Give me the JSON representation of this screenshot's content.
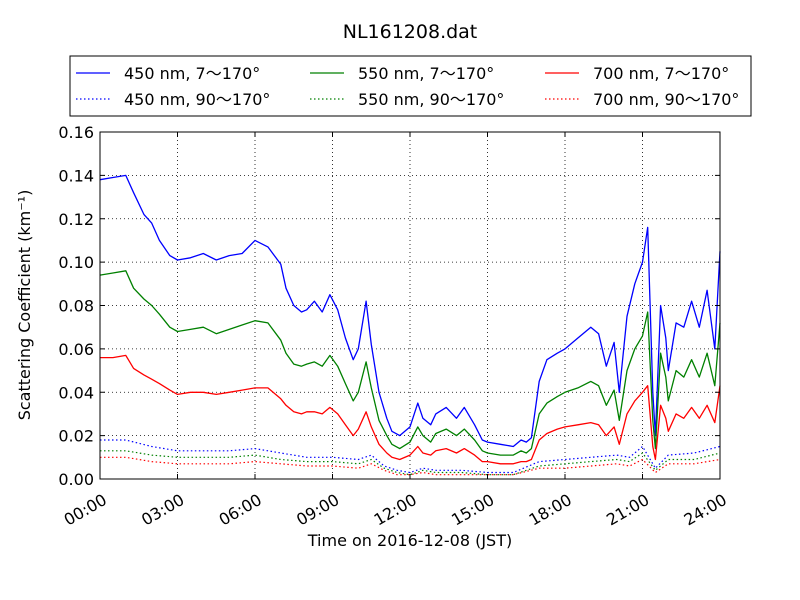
{
  "chart_data": {
    "type": "line",
    "title": "NL161208.dat",
    "xlabel": "Time on 2016-12-08 (JST)",
    "ylabel": "Scattering Coefficient (km⁻¹)",
    "xlim": [
      0,
      24
    ],
    "ylim": [
      0,
      0.16
    ],
    "x_ticks": [
      "00:00",
      "03:00",
      "06:00",
      "09:00",
      "12:00",
      "15:00",
      "18:00",
      "21:00",
      "24:00"
    ],
    "y_ticks": [
      "0.00",
      "0.02",
      "0.04",
      "0.06",
      "0.08",
      "0.10",
      "0.12",
      "0.14",
      "0.16"
    ],
    "grid": true,
    "legend_position": "top",
    "x_unit": "hours (JST)",
    "series": [
      {
        "name": "450 nm, 7～170°",
        "color": "#0000ff",
        "style": "solid",
        "x": [
          0,
          0.5,
          1,
          1.3,
          1.7,
          2,
          2.3,
          2.7,
          3,
          3.5,
          4,
          4.5,
          5,
          5.5,
          6,
          6.5,
          7,
          7.2,
          7.5,
          7.8,
          8,
          8.3,
          8.6,
          8.9,
          9.2,
          9.5,
          9.8,
          10,
          10.3,
          10.5,
          10.8,
          11.1,
          11.3,
          11.6,
          12,
          12.3,
          12.5,
          12.8,
          13,
          13.4,
          13.8,
          14.1,
          14.5,
          14.8,
          15,
          15.5,
          16,
          16.3,
          16.5,
          16.7,
          17,
          17.3,
          17.7,
          18,
          18.5,
          19,
          19.3,
          19.6,
          19.9,
          20.1,
          20.4,
          20.7,
          21,
          21.2,
          21.4,
          21.5,
          21.7,
          21.9,
          22,
          22.3,
          22.6,
          22.9,
          23.2,
          23.5,
          23.8,
          24
        ],
        "values": [
          0.138,
          0.139,
          0.14,
          0.132,
          0.122,
          0.118,
          0.11,
          0.103,
          0.101,
          0.102,
          0.104,
          0.101,
          0.103,
          0.104,
          0.11,
          0.107,
          0.099,
          0.088,
          0.08,
          0.077,
          0.078,
          0.082,
          0.077,
          0.085,
          0.078,
          0.065,
          0.055,
          0.06,
          0.082,
          0.062,
          0.04,
          0.028,
          0.022,
          0.02,
          0.024,
          0.035,
          0.028,
          0.025,
          0.03,
          0.033,
          0.028,
          0.033,
          0.025,
          0.018,
          0.017,
          0.016,
          0.015,
          0.018,
          0.017,
          0.019,
          0.045,
          0.055,
          0.058,
          0.06,
          0.065,
          0.07,
          0.067,
          0.052,
          0.063,
          0.04,
          0.075,
          0.09,
          0.1,
          0.116,
          0.04,
          0.02,
          0.08,
          0.065,
          0.05,
          0.072,
          0.07,
          0.082,
          0.07,
          0.087,
          0.06,
          0.105
        ]
      },
      {
        "name": "450 nm, 90～170°",
        "color": "#0000ff",
        "style": "dotted",
        "x": [
          0,
          1,
          2,
          3,
          4,
          5,
          6,
          7,
          8,
          9,
          10,
          10.5,
          11,
          11.5,
          12,
          12.5,
          13,
          14,
          15,
          16,
          17,
          18,
          19,
          20,
          20.5,
          21,
          21.5,
          22,
          23,
          24
        ],
        "values": [
          0.018,
          0.018,
          0.015,
          0.013,
          0.013,
          0.013,
          0.014,
          0.012,
          0.01,
          0.01,
          0.009,
          0.011,
          0.006,
          0.004,
          0.003,
          0.005,
          0.004,
          0.004,
          0.003,
          0.003,
          0.008,
          0.009,
          0.01,
          0.011,
          0.01,
          0.015,
          0.005,
          0.011,
          0.012,
          0.015
        ]
      },
      {
        "name": "550 nm, 7～170°",
        "color": "#008000",
        "style": "solid",
        "x": [
          0,
          0.5,
          1,
          1.3,
          1.7,
          2,
          2.3,
          2.7,
          3,
          3.5,
          4,
          4.5,
          5,
          5.5,
          6,
          6.5,
          7,
          7.2,
          7.5,
          7.8,
          8,
          8.3,
          8.6,
          8.9,
          9.2,
          9.5,
          9.8,
          10,
          10.3,
          10.5,
          10.8,
          11.1,
          11.3,
          11.6,
          12,
          12.3,
          12.5,
          12.8,
          13,
          13.4,
          13.8,
          14.1,
          14.5,
          14.8,
          15,
          15.5,
          16,
          16.3,
          16.5,
          16.7,
          17,
          17.3,
          17.7,
          18,
          18.5,
          19,
          19.3,
          19.6,
          19.9,
          20.1,
          20.4,
          20.7,
          21,
          21.2,
          21.4,
          21.5,
          21.7,
          21.9,
          22,
          22.3,
          22.6,
          22.9,
          23.2,
          23.5,
          23.8,
          24
        ],
        "values": [
          0.094,
          0.095,
          0.096,
          0.088,
          0.083,
          0.08,
          0.076,
          0.07,
          0.068,
          0.069,
          0.07,
          0.067,
          0.069,
          0.071,
          0.073,
          0.072,
          0.064,
          0.058,
          0.053,
          0.052,
          0.053,
          0.054,
          0.052,
          0.057,
          0.052,
          0.044,
          0.036,
          0.04,
          0.054,
          0.042,
          0.027,
          0.02,
          0.016,
          0.014,
          0.017,
          0.024,
          0.02,
          0.017,
          0.021,
          0.023,
          0.02,
          0.023,
          0.018,
          0.013,
          0.012,
          0.011,
          0.011,
          0.013,
          0.012,
          0.014,
          0.03,
          0.035,
          0.038,
          0.04,
          0.042,
          0.045,
          0.043,
          0.034,
          0.041,
          0.027,
          0.05,
          0.06,
          0.066,
          0.077,
          0.027,
          0.014,
          0.058,
          0.047,
          0.036,
          0.05,
          0.047,
          0.055,
          0.047,
          0.058,
          0.043,
          0.072
        ]
      },
      {
        "name": "550 nm, 90～170°",
        "color": "#008000",
        "style": "dotted",
        "x": [
          0,
          1,
          2,
          3,
          4,
          5,
          6,
          7,
          8,
          9,
          10,
          10.5,
          11,
          11.5,
          12,
          12.5,
          13,
          14,
          15,
          16,
          17,
          18,
          19,
          20,
          20.5,
          21,
          21.5,
          22,
          23,
          24
        ],
        "values": [
          0.013,
          0.013,
          0.011,
          0.01,
          0.01,
          0.01,
          0.011,
          0.009,
          0.008,
          0.008,
          0.007,
          0.009,
          0.005,
          0.003,
          0.002,
          0.004,
          0.003,
          0.003,
          0.002,
          0.002,
          0.006,
          0.007,
          0.008,
          0.009,
          0.008,
          0.012,
          0.004,
          0.009,
          0.009,
          0.012
        ]
      },
      {
        "name": "700 nm, 7～170°",
        "color": "#ff0000",
        "style": "solid",
        "x": [
          0,
          0.5,
          1,
          1.3,
          1.7,
          2,
          2.3,
          2.7,
          3,
          3.5,
          4,
          4.5,
          5,
          5.5,
          6,
          6.5,
          7,
          7.2,
          7.5,
          7.8,
          8,
          8.3,
          8.6,
          8.9,
          9.2,
          9.5,
          9.8,
          10,
          10.3,
          10.5,
          10.8,
          11.1,
          11.3,
          11.6,
          12,
          12.3,
          12.5,
          12.8,
          13,
          13.4,
          13.8,
          14.1,
          14.5,
          14.8,
          15,
          15.5,
          16,
          16.3,
          16.5,
          16.7,
          17,
          17.3,
          17.7,
          18,
          18.5,
          19,
          19.3,
          19.6,
          19.9,
          20.1,
          20.4,
          20.7,
          21,
          21.2,
          21.4,
          21.5,
          21.7,
          21.9,
          22,
          22.3,
          22.6,
          22.9,
          23.2,
          23.5,
          23.8,
          24
        ],
        "values": [
          0.056,
          0.056,
          0.057,
          0.051,
          0.048,
          0.046,
          0.044,
          0.041,
          0.039,
          0.04,
          0.04,
          0.039,
          0.04,
          0.041,
          0.042,
          0.042,
          0.037,
          0.034,
          0.031,
          0.03,
          0.031,
          0.031,
          0.03,
          0.033,
          0.03,
          0.025,
          0.02,
          0.023,
          0.031,
          0.024,
          0.016,
          0.012,
          0.01,
          0.009,
          0.011,
          0.015,
          0.012,
          0.011,
          0.013,
          0.014,
          0.012,
          0.014,
          0.011,
          0.008,
          0.008,
          0.007,
          0.007,
          0.008,
          0.008,
          0.009,
          0.018,
          0.021,
          0.023,
          0.024,
          0.025,
          0.026,
          0.025,
          0.02,
          0.024,
          0.016,
          0.03,
          0.036,
          0.04,
          0.043,
          0.015,
          0.009,
          0.034,
          0.028,
          0.022,
          0.03,
          0.028,
          0.033,
          0.028,
          0.034,
          0.026,
          0.043
        ]
      },
      {
        "name": "700 nm, 90～170°",
        "color": "#ff0000",
        "style": "dotted",
        "x": [
          0,
          1,
          2,
          3,
          4,
          5,
          6,
          7,
          8,
          9,
          10,
          10.5,
          11,
          11.5,
          12,
          12.5,
          13,
          14,
          15,
          16,
          17,
          18,
          19,
          20,
          20.5,
          21,
          21.5,
          22,
          23,
          24
        ],
        "values": [
          0.01,
          0.01,
          0.008,
          0.007,
          0.007,
          0.007,
          0.008,
          0.007,
          0.006,
          0.006,
          0.005,
          0.007,
          0.004,
          0.002,
          0.002,
          0.003,
          0.002,
          0.002,
          0.002,
          0.002,
          0.005,
          0.005,
          0.006,
          0.007,
          0.006,
          0.009,
          0.003,
          0.007,
          0.007,
          0.009
        ]
      }
    ]
  }
}
